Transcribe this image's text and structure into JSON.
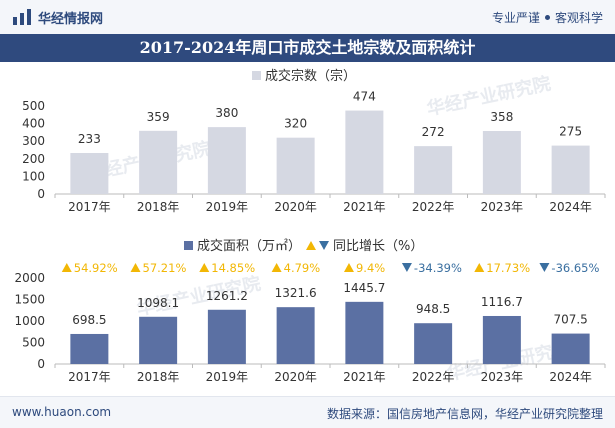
{
  "header": {
    "brand": "华经情报网",
    "tagline_left": "专业严谨",
    "tagline_right": "客观科学"
  },
  "title": "2017-2024年周口市成交土地宗数及面积统计",
  "watermark": "华经产业研究院",
  "footer": {
    "site": "www.huaon.com",
    "source": "数据来源：国信房地产信息网，华经产业研究院整理"
  },
  "colors": {
    "bar_top": "#d5d8e2",
    "bar_bottom": "#5b70a3",
    "up": "#f2b705",
    "down": "#3a6fa0",
    "title_bg": "#2f4a7e"
  },
  "chart_data": [
    {
      "type": "bar",
      "legend": "成交宗数（宗）",
      "categories": [
        "2017年",
        "2018年",
        "2019年",
        "2020年",
        "2021年",
        "2022年",
        "2023年",
        "2024年"
      ],
      "values": [
        233,
        359,
        380,
        320,
        474,
        272,
        358,
        275
      ],
      "value_labels": [
        "233",
        "359",
        "380",
        "320",
        "474",
        "272",
        "358",
        "275"
      ],
      "ylim": [
        0,
        500
      ],
      "yticks": [
        "0",
        "100",
        "200",
        "300",
        "400",
        "500"
      ],
      "legend_position": "top-center"
    },
    {
      "type": "bar",
      "legend": "成交面积（万㎡）",
      "growth_legend": "同比增长（%）",
      "categories": [
        "2017年",
        "2018年",
        "2019年",
        "2020年",
        "2021年",
        "2022年",
        "2023年",
        "2024年"
      ],
      "values": [
        698.5,
        1098.1,
        1261.2,
        1321.6,
        1445.7,
        948.5,
        1116.7,
        707.5
      ],
      "value_labels": [
        "698.5",
        "1098.1",
        "1261.2",
        "1321.6",
        "1445.7",
        "948.5",
        "1116.7",
        "707.5"
      ],
      "growth": [
        54.92,
        57.21,
        14.85,
        4.79,
        9.4,
        -34.39,
        17.73,
        -36.65
      ],
      "growth_labels": [
        "54.92%",
        "57.21%",
        "14.85%",
        "4.79%",
        "9.4%",
        "-34.39%",
        "17.73%",
        "-36.65%"
      ],
      "ylim": [
        0,
        2000
      ],
      "yticks": [
        "0",
        "500",
        "1000",
        "1500",
        "2000"
      ],
      "legend_position": "top-center"
    }
  ]
}
